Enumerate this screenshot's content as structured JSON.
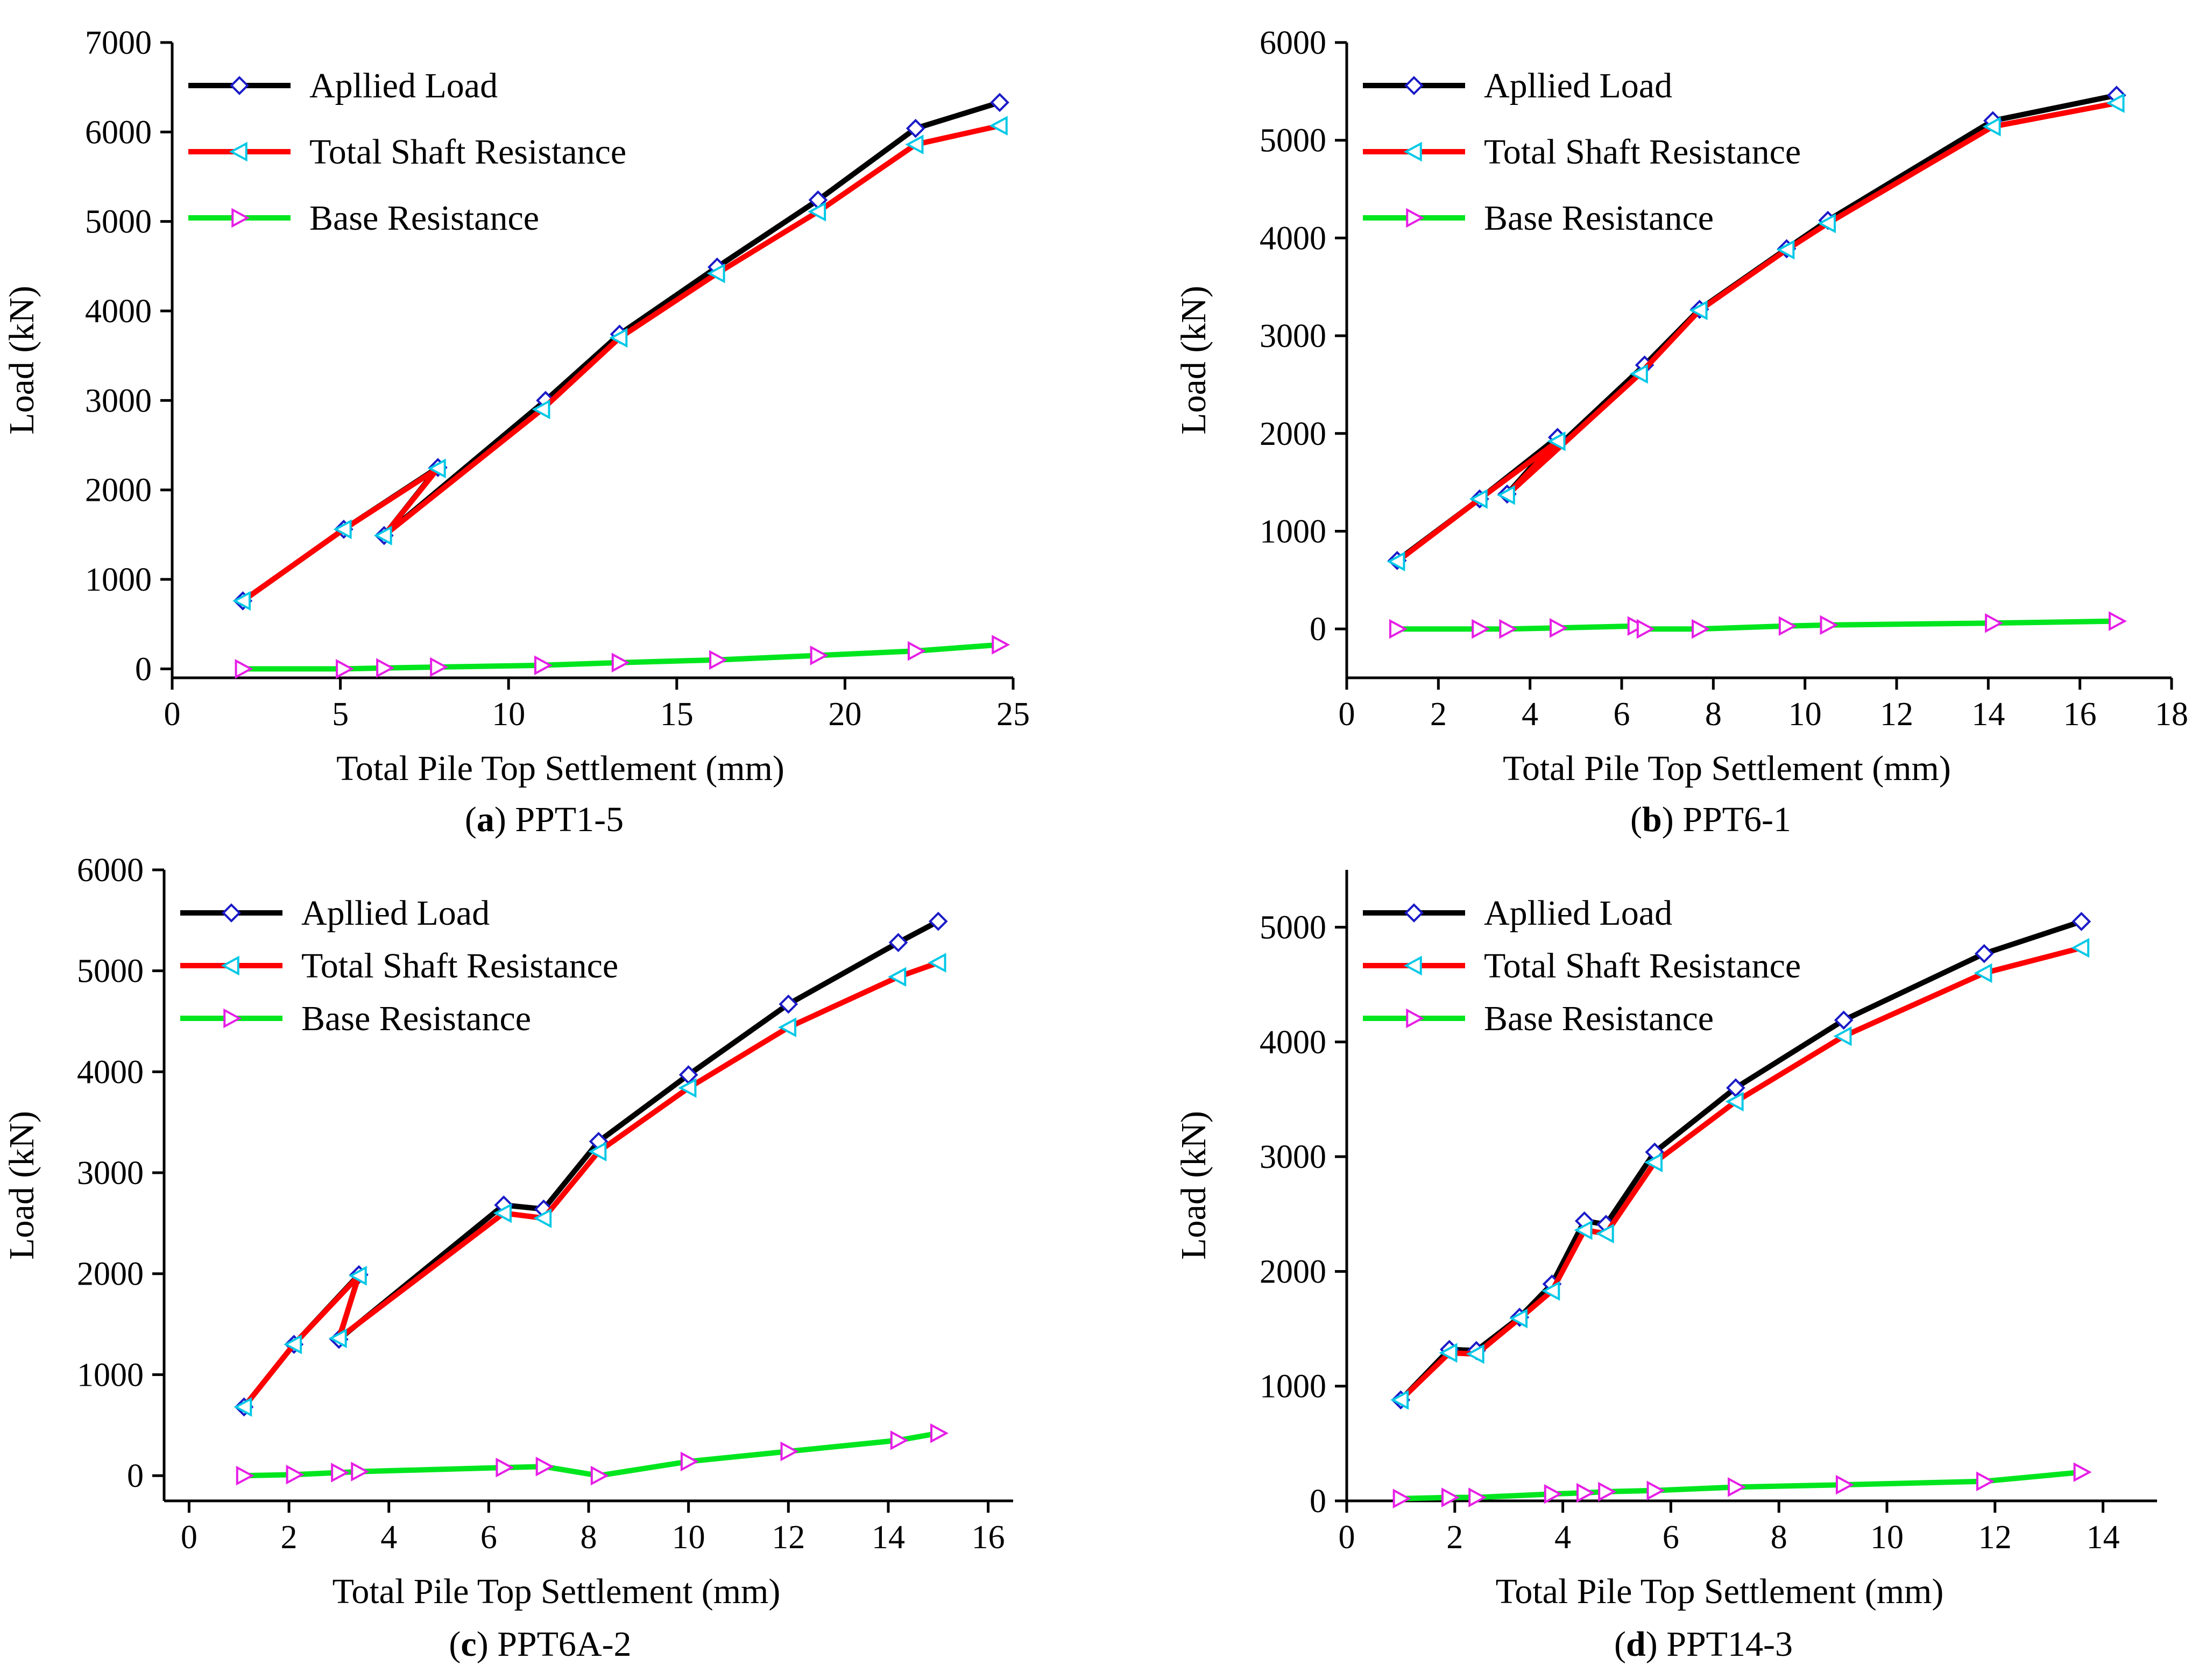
{
  "figure": {
    "legend_labels": [
      "Apllied Load",
      "Total Shaft Resistance",
      "Base Resistance"
    ],
    "colors": {
      "applied_line": "#000000",
      "applied_marker": "#1a1ac8",
      "shaft_line": "#ff0000",
      "shaft_marker": "#00c8e6",
      "base_line": "#00e61e",
      "base_marker": "#e61ee6",
      "axis": "#000000"
    }
  },
  "chart_data": [
    {
      "id": "a",
      "type": "line",
      "caption_letter": "a",
      "caption_text": "PPT1-5",
      "xlabel": "Total Pile Top Settlement (mm)",
      "ylabel": "Load (kN)",
      "xlim": [
        0,
        25
      ],
      "ylim": [
        -100,
        7000
      ],
      "xticks": [
        0,
        5,
        10,
        15,
        20,
        25
      ],
      "yticks": [
        0,
        1000,
        2000,
        3000,
        4000,
        5000,
        6000,
        7000
      ],
      "series": [
        {
          "name": "Apllied Load",
          "x": [
            2.1,
            5.1,
            7.9,
            6.3,
            11.1,
            13.3,
            16.2,
            19.2,
            22.1,
            24.6
          ],
          "y": [
            760,
            1560,
            2250,
            1490,
            3000,
            3740,
            4490,
            5240,
            6040,
            6330
          ]
        },
        {
          "name": "Total Shaft Resistance",
          "x": [
            2.1,
            5.1,
            7.9,
            6.3,
            11.0,
            13.3,
            16.2,
            19.2,
            22.1,
            24.6
          ],
          "y": [
            760,
            1560,
            2240,
            1490,
            2900,
            3700,
            4420,
            5110,
            5860,
            6070
          ]
        },
        {
          "name": "Base Resistance",
          "x": [
            2.1,
            5.1,
            6.3,
            7.9,
            11.0,
            13.3,
            16.2,
            19.2,
            22.1,
            24.6
          ],
          "y": [
            0,
            0,
            10,
            20,
            40,
            70,
            100,
            150,
            200,
            270
          ]
        }
      ]
    },
    {
      "id": "b",
      "type": "line",
      "caption_letter": "b",
      "caption_text": "PPT6-1",
      "xlabel": "Total Pile Top Settlement (mm)",
      "ylabel": "Load (kN)",
      "xlim": [
        0,
        18
      ],
      "ylim": [
        -500,
        6000
      ],
      "xticks": [
        0,
        2,
        4,
        6,
        8,
        10,
        12,
        14,
        16,
        18
      ],
      "yticks": [
        0,
        1000,
        2000,
        3000,
        4000,
        5000,
        6000
      ],
      "series": [
        {
          "name": "Apllied Load",
          "x": [
            1.1,
            2.9,
            4.6,
            3.5,
            6.5,
            7.7,
            9.6,
            10.5,
            14.1,
            16.8
          ],
          "y": [
            700,
            1330,
            1960,
            1380,
            2700,
            3270,
            3890,
            4180,
            5200,
            5460
          ]
        },
        {
          "name": "Total Shaft Resistance",
          "x": [
            1.1,
            2.9,
            4.6,
            3.5,
            6.4,
            7.7,
            9.6,
            10.5,
            14.1,
            16.8
          ],
          "y": [
            690,
            1330,
            1920,
            1370,
            2610,
            3260,
            3880,
            4150,
            5140,
            5380
          ]
        },
        {
          "name": "Base Resistance",
          "x": [
            1.1,
            2.9,
            3.5,
            4.6,
            6.3,
            6.5,
            7.7,
            9.6,
            10.5,
            14.1,
            16.8
          ],
          "y": [
            0,
            0,
            0,
            10,
            30,
            0,
            0,
            30,
            40,
            60,
            80
          ]
        }
      ]
    },
    {
      "id": "c",
      "type": "line",
      "caption_letter": "c",
      "caption_text": "PPT6A-2",
      "xlabel": "Total Pile Top Settlement (mm)",
      "ylabel": "Load (kN)",
      "xlim": [
        -0.5,
        16.5
      ],
      "ylim": [
        -250,
        6000
      ],
      "xticks": [
        0,
        2,
        4,
        6,
        8,
        10,
        12,
        14,
        16
      ],
      "yticks": [
        0,
        1000,
        2000,
        3000,
        4000,
        5000,
        6000
      ],
      "series": [
        {
          "name": "Apllied Load",
          "x": [
            1.1,
            2.1,
            3.4,
            3.0,
            6.3,
            7.1,
            8.2,
            10.0,
            12.0,
            14.2,
            15.0
          ],
          "y": [
            680,
            1300,
            1990,
            1350,
            2680,
            2640,
            3310,
            3970,
            4670,
            5280,
            5490
          ]
        },
        {
          "name": "Total Shaft Resistance",
          "x": [
            1.1,
            2.1,
            3.4,
            3.0,
            6.3,
            7.1,
            8.2,
            10.0,
            12.0,
            14.2,
            15.0
          ],
          "y": [
            680,
            1300,
            1980,
            1360,
            2600,
            2550,
            3210,
            3840,
            4440,
            4940,
            5080
          ]
        },
        {
          "name": "Base Resistance",
          "x": [
            1.1,
            2.1,
            3.0,
            3.4,
            6.3,
            7.1,
            8.2,
            10.0,
            12.0,
            14.2,
            15.0
          ],
          "y": [
            0,
            10,
            30,
            40,
            80,
            90,
            0,
            140,
            240,
            350,
            420
          ]
        }
      ]
    },
    {
      "id": "d",
      "type": "line",
      "caption_letter": "d",
      "caption_text": "PPT14-3",
      "xlabel": "Total Pile Top Settlement (mm)",
      "ylabel": "Load (kN)",
      "xlim": [
        0,
        15
      ],
      "ylim": [
        0,
        5500
      ],
      "xticks": [
        0,
        2,
        4,
        6,
        8,
        10,
        12,
        14
      ],
      "yticks": [
        0,
        1000,
        2000,
        3000,
        4000,
        5000
      ],
      "series": [
        {
          "name": "Apllied Load",
          "x": [
            1.0,
            1.9,
            2.4,
            3.2,
            3.8,
            4.4,
            4.8,
            5.7,
            7.2,
            9.2,
            11.8,
            13.6
          ],
          "y": [
            880,
            1320,
            1310,
            1600,
            1890,
            2440,
            2410,
            3040,
            3600,
            4190,
            4770,
            5050
          ]
        },
        {
          "name": "Total Shaft Resistance",
          "x": [
            1.0,
            1.9,
            2.4,
            3.2,
            3.8,
            4.4,
            4.8,
            5.7,
            7.2,
            9.2,
            11.8,
            13.6
          ],
          "y": [
            880,
            1290,
            1280,
            1590,
            1830,
            2360,
            2330,
            2950,
            3480,
            4050,
            4600,
            4820
          ]
        },
        {
          "name": "Base Resistance",
          "x": [
            1.0,
            1.9,
            2.4,
            3.8,
            4.4,
            4.8,
            5.7,
            7.2,
            9.2,
            11.8,
            13.6
          ],
          "y": [
            20,
            30,
            30,
            60,
            70,
            80,
            90,
            120,
            140,
            170,
            250
          ]
        }
      ]
    }
  ]
}
